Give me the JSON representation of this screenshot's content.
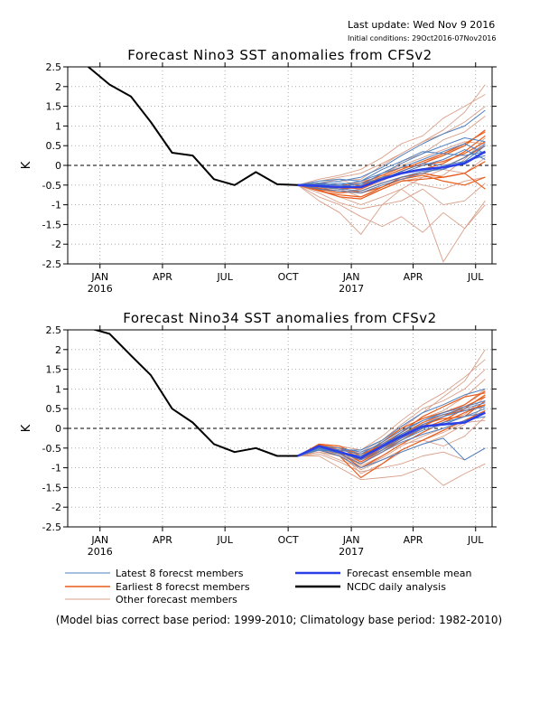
{
  "header": {
    "last_update": "Last update: Wed Nov  9 2016",
    "initial_conditions": "Initial conditions: 29Oct2016-07Nov2016"
  },
  "footer": {
    "note": "(Model bias correct base period: 1999-2010; Climatology base period: 1982-2010)"
  },
  "legend": {
    "placement": "bottom",
    "entries": [
      {
        "label": "Latest 8 forecst members",
        "color": "#4f7fbf",
        "role": "latest"
      },
      {
        "label": "Earliest 8 forecst members",
        "color": "#e85c1c",
        "role": "earliest"
      },
      {
        "label": "Other forecast members",
        "color": "#d9a08a",
        "role": "other"
      },
      {
        "label": "Forecast ensemble mean",
        "color": "#2b3fe6",
        "role": "mean"
      },
      {
        "label": "NCDC daily analysis",
        "color": "#000000",
        "role": "obs"
      }
    ]
  },
  "chart_data": [
    {
      "type": "line",
      "title": "Forecast Nino3 SST anomalies from CFSv2",
      "ylabel": "K",
      "ylim": [
        -2.5,
        2.5
      ],
      "xlim": [
        "2015-11-15",
        "2017-07-25"
      ],
      "grid": "dotted",
      "zero_line": true,
      "yticks": [
        2.5,
        2,
        1.5,
        1,
        0.5,
        0,
        -0.5,
        -1,
        -1.5,
        -2,
        -2.5
      ],
      "ytick_labels": [
        "2.5",
        "2",
        "1.5",
        "1",
        "0.5",
        "0",
        "-0.5",
        "-1",
        "-1.5",
        "-2",
        "-2.5"
      ],
      "xticks": [
        {
          "x": "2016-01-01",
          "label": "JAN",
          "year": "2016"
        },
        {
          "x": "2016-04-01",
          "label": "APR",
          "year": ""
        },
        {
          "x": "2016-07-01",
          "label": "JUL",
          "year": ""
        },
        {
          "x": "2016-10-01",
          "label": "OCT",
          "year": ""
        },
        {
          "x": "2017-01-01",
          "label": "JAN",
          "year": "2017"
        },
        {
          "x": "2017-04-01",
          "label": "APR",
          "year": ""
        },
        {
          "x": "2017-07-01",
          "label": "JUL",
          "year": ""
        }
      ],
      "observed": {
        "x": [
          "2015-12-15",
          "2016-01-15",
          "2016-02-15",
          "2016-03-15",
          "2016-04-15",
          "2016-05-15",
          "2016-06-15",
          "2016-07-15",
          "2016-08-15",
          "2016-09-15",
          "2016-10-15"
        ],
        "y": [
          2.5,
          2.05,
          1.75,
          1.1,
          0.32,
          0.25,
          -0.35,
          -0.5,
          -0.17,
          -0.48,
          -0.5
        ]
      },
      "forecast_x": [
        "2016-10-15",
        "2016-11-15",
        "2016-12-15",
        "2017-01-15",
        "2017-02-15",
        "2017-03-15",
        "2017-04-15",
        "2017-05-15",
        "2017-06-15",
        "2017-07-15"
      ],
      "ensemble_mean": [
        -0.5,
        -0.52,
        -0.55,
        -0.55,
        -0.35,
        -0.2,
        -0.1,
        -0.05,
        0.05,
        0.35
      ],
      "members": {
        "other": [
          [
            -0.5,
            -0.9,
            -1.2,
            -1.75,
            -1.0,
            -0.6,
            -1.0,
            -2.45,
            -1.6,
            -1.0
          ],
          [
            -0.5,
            -0.8,
            -1.0,
            -1.3,
            -1.55,
            -1.3,
            -1.7,
            -1.2,
            -1.6,
            -0.9
          ],
          [
            -0.5,
            -0.7,
            -0.95,
            -1.1,
            -1.0,
            -0.9,
            -0.6,
            -1.0,
            -0.9,
            -0.45
          ],
          [
            -0.5,
            -0.45,
            -0.4,
            -0.35,
            0.0,
            0.3,
            0.6,
            0.9,
            1.35,
            2.05
          ],
          [
            -0.5,
            -0.35,
            -0.25,
            -0.1,
            0.2,
            0.55,
            0.75,
            1.2,
            1.5,
            1.8
          ],
          [
            -0.5,
            -0.4,
            -0.3,
            -0.2,
            0.05,
            0.3,
            0.6,
            0.8,
            1.1,
            1.5
          ],
          [
            -0.5,
            -0.55,
            -0.5,
            -0.4,
            -0.3,
            0.1,
            0.3,
            0.65,
            0.85,
            1.25
          ],
          [
            -0.5,
            -0.6,
            -0.7,
            -0.6,
            -0.4,
            -0.15,
            0.05,
            0.3,
            0.5,
            0.9
          ],
          [
            -0.5,
            -0.5,
            -0.6,
            -0.8,
            -0.6,
            -0.4,
            -0.3,
            -0.25,
            0.15,
            0.7
          ],
          [
            -0.5,
            -0.65,
            -0.8,
            -1.0,
            -0.8,
            -0.6,
            -0.3,
            -0.1,
            -0.2,
            0.2
          ],
          [
            -0.5,
            -0.45,
            -0.35,
            -0.55,
            -0.2,
            0.0,
            0.2,
            0.4,
            0.6,
            0.55
          ],
          [
            -0.5,
            -0.6,
            -0.55,
            -0.7,
            -0.5,
            -0.35,
            -0.5,
            -0.6,
            -0.4,
            -0.3
          ]
        ],
        "earliest": [
          [
            -0.5,
            -0.55,
            -0.6,
            -0.5,
            -0.3,
            -0.1,
            0.1,
            0.3,
            0.55,
            0.85
          ],
          [
            -0.5,
            -0.6,
            -0.7,
            -0.65,
            -0.45,
            -0.3,
            -0.2,
            -0.05,
            0.2,
            0.5
          ],
          [
            -0.5,
            -0.5,
            -0.55,
            -0.6,
            -0.35,
            -0.15,
            0.05,
            0.25,
            0.5,
            0.9
          ],
          [
            -0.5,
            -0.62,
            -0.8,
            -0.85,
            -0.6,
            -0.4,
            -0.35,
            -0.3,
            -0.2,
            0.1
          ],
          [
            -0.5,
            -0.45,
            -0.5,
            -0.45,
            -0.25,
            -0.05,
            0.0,
            0.1,
            0.3,
            0.6
          ],
          [
            -0.5,
            -0.58,
            -0.65,
            -0.7,
            -0.55,
            -0.35,
            -0.25,
            -0.4,
            -0.5,
            -0.3
          ],
          [
            -0.5,
            -0.52,
            -0.6,
            -0.55,
            -0.3,
            -0.2,
            -0.1,
            0.05,
            0.35,
            0.75
          ],
          [
            -0.5,
            -0.65,
            -0.75,
            -0.8,
            -0.55,
            -0.3,
            -0.2,
            -0.3,
            -0.2,
            -0.6
          ]
        ],
        "latest": [
          [
            -0.5,
            -0.45,
            -0.4,
            -0.3,
            -0.05,
            0.25,
            0.55,
            0.8,
            1.0,
            1.4
          ],
          [
            -0.5,
            -0.5,
            -0.45,
            -0.5,
            -0.2,
            0.05,
            0.3,
            0.5,
            0.7,
            0.6
          ],
          [
            -0.5,
            -0.4,
            -0.35,
            -0.4,
            -0.1,
            0.1,
            0.35,
            0.3,
            0.25,
            0.35
          ],
          [
            -0.5,
            -0.55,
            -0.6,
            -0.65,
            -0.45,
            -0.3,
            -0.15,
            -0.1,
            0.1,
            0.25
          ],
          [
            -0.5,
            -0.5,
            -0.55,
            -0.45,
            -0.35,
            -0.15,
            0.05,
            0.0,
            0.1,
            0.5
          ],
          [
            -0.5,
            -0.48,
            -0.5,
            -0.55,
            -0.3,
            -0.2,
            0.0,
            0.15,
            0.4,
            0.15
          ],
          [
            -0.5,
            -0.6,
            -0.65,
            -0.7,
            -0.5,
            -0.35,
            -0.2,
            -0.05,
            0.2,
            0.55
          ],
          [
            -0.5,
            -0.45,
            -0.5,
            -0.4,
            -0.2,
            -0.05,
            0.15,
            0.35,
            0.55,
            0.3
          ]
        ]
      }
    },
    {
      "type": "line",
      "title": "Forecast Nino34 SST anomalies from CFSv2",
      "ylabel": "K",
      "ylim": [
        -2.5,
        2.5
      ],
      "xlim": [
        "2015-11-15",
        "2017-07-25"
      ],
      "grid": "dotted",
      "zero_line": true,
      "yticks": [
        2.5,
        2,
        1.5,
        1,
        0.5,
        0,
        -0.5,
        -1,
        -1.5,
        -2,
        -2.5
      ],
      "ytick_labels": [
        "2.5",
        "2",
        "1.5",
        "1",
        "0.5",
        "0",
        "-0.5",
        "-1",
        "-1.5",
        "-2",
        "-2.5"
      ],
      "xticks": [
        {
          "x": "2016-01-01",
          "label": "JAN",
          "year": "2016"
        },
        {
          "x": "2016-04-01",
          "label": "APR",
          "year": ""
        },
        {
          "x": "2016-07-01",
          "label": "JUL",
          "year": ""
        },
        {
          "x": "2016-10-01",
          "label": "OCT",
          "year": ""
        },
        {
          "x": "2017-01-01",
          "label": "JAN",
          "year": "2017"
        },
        {
          "x": "2017-04-01",
          "label": "APR",
          "year": ""
        },
        {
          "x": "2017-07-01",
          "label": "JUL",
          "year": ""
        }
      ],
      "observed": {
        "x": [
          "2015-12-15",
          "2016-01-15",
          "2016-02-15",
          "2016-03-15",
          "2016-04-15",
          "2016-05-15",
          "2016-06-15",
          "2016-07-15",
          "2016-08-15",
          "2016-09-15",
          "2016-10-15"
        ],
        "y": [
          2.55,
          2.4,
          1.85,
          1.35,
          0.5,
          0.15,
          -0.4,
          -0.6,
          -0.5,
          -0.7,
          -0.7
        ]
      },
      "forecast_x": [
        "2016-10-15",
        "2016-11-15",
        "2016-12-15",
        "2017-01-15",
        "2017-02-15",
        "2017-03-15",
        "2017-04-15",
        "2017-05-15",
        "2017-06-15",
        "2017-07-15"
      ],
      "ensemble_mean": [
        -0.7,
        -0.45,
        -0.6,
        -0.75,
        -0.45,
        -0.2,
        0.05,
        0.1,
        0.15,
        0.4
      ],
      "members": {
        "other": [
          [
            -0.7,
            -0.7,
            -1.0,
            -1.3,
            -1.25,
            -1.2,
            -1.0,
            -1.45,
            -1.15,
            -0.9
          ],
          [
            -0.7,
            -0.65,
            -0.85,
            -1.1,
            -1.0,
            -0.9,
            -0.7,
            -0.6,
            -0.8,
            -0.5
          ],
          [
            -0.7,
            -0.5,
            -0.5,
            -0.7,
            -0.35,
            0.0,
            0.4,
            0.8,
            1.2,
            2.0
          ],
          [
            -0.7,
            -0.4,
            -0.45,
            -0.55,
            -0.2,
            0.2,
            0.6,
            0.9,
            1.3,
            1.75
          ],
          [
            -0.7,
            -0.55,
            -0.6,
            -0.8,
            -0.3,
            0.1,
            0.5,
            0.7,
            1.0,
            1.5
          ],
          [
            -0.7,
            -0.6,
            -0.7,
            -0.9,
            -0.55,
            -0.2,
            0.15,
            0.3,
            0.6,
            1.0
          ],
          [
            -0.7,
            -0.45,
            -0.55,
            -0.95,
            -0.7,
            -0.4,
            -0.3,
            -0.45,
            -0.2,
            0.3
          ],
          [
            -0.7,
            -0.5,
            -0.6,
            -1.15,
            -0.9,
            -0.6,
            -0.4,
            -0.2,
            0.1,
            0.6
          ],
          [
            -0.7,
            -0.55,
            -0.65,
            -0.85,
            -0.5,
            -0.25,
            0.0,
            0.2,
            0.35,
            0.8
          ],
          [
            -0.7,
            -0.6,
            -0.8,
            -1.0,
            -0.75,
            -0.45,
            -0.2,
            0.0,
            0.2,
            0.45
          ],
          [
            -0.7,
            -0.5,
            -0.7,
            -1.05,
            -0.8,
            -0.55,
            -0.3,
            -0.1,
            0.15,
            0.2
          ],
          [
            -0.7,
            -0.45,
            -0.5,
            -0.6,
            -0.3,
            0.0,
            0.25,
            0.45,
            0.8,
            1.25
          ]
        ],
        "earliest": [
          [
            -0.7,
            -0.4,
            -0.45,
            -0.7,
            -0.4,
            -0.1,
            0.3,
            0.55,
            0.8,
            0.9
          ],
          [
            -0.7,
            -0.45,
            -0.55,
            -0.85,
            -0.55,
            -0.25,
            0.05,
            0.3,
            0.55,
            0.8
          ],
          [
            -0.7,
            -0.5,
            -0.6,
            -1.0,
            -0.7,
            -0.4,
            -0.1,
            0.15,
            0.4,
            0.6
          ],
          [
            -0.7,
            -0.42,
            -0.5,
            -0.75,
            -0.35,
            0.0,
            0.25,
            0.4,
            0.6,
            0.95
          ],
          [
            -0.7,
            -0.55,
            -0.7,
            -1.25,
            -0.9,
            -0.55,
            -0.3,
            -0.05,
            0.2,
            0.45
          ],
          [
            -0.7,
            -0.48,
            -0.58,
            -0.8,
            -0.5,
            -0.2,
            0.1,
            0.25,
            0.3,
            0.7
          ],
          [
            -0.7,
            -0.5,
            -0.65,
            -0.9,
            -0.6,
            -0.3,
            0.0,
            0.2,
            0.5,
            0.85
          ],
          [
            -0.7,
            -0.45,
            -0.5,
            -0.65,
            -0.45,
            -0.15,
            0.15,
            0.35,
            0.45,
            0.6
          ]
        ],
        "latest": [
          [
            -0.7,
            -0.5,
            -0.55,
            -0.55,
            -0.3,
            0.05,
            0.4,
            0.6,
            0.85,
            1.0
          ],
          [
            -0.7,
            -0.55,
            -0.6,
            -0.7,
            -0.45,
            -0.1,
            0.2,
            0.4,
            0.55,
            0.7
          ],
          [
            -0.7,
            -0.45,
            -0.5,
            -0.6,
            -0.4,
            -0.15,
            0.1,
            0.3,
            0.45,
            0.55
          ],
          [
            -0.7,
            -0.5,
            -0.65,
            -0.9,
            -0.6,
            -0.35,
            -0.15,
            0.0,
            0.2,
            0.3
          ],
          [
            -0.7,
            -0.55,
            -0.7,
            -1.0,
            -0.8,
            -0.6,
            -0.4,
            -0.25,
            -0.8,
            -0.5
          ],
          [
            -0.7,
            -0.5,
            -0.6,
            -0.75,
            -0.5,
            -0.25,
            0.0,
            0.15,
            0.3,
            0.5
          ],
          [
            -0.7,
            -0.48,
            -0.55,
            -0.65,
            -0.35,
            -0.05,
            0.2,
            0.35,
            0.5,
            0.65
          ],
          [
            -0.7,
            -0.52,
            -0.62,
            -0.8,
            -0.55,
            -0.3,
            -0.05,
            0.1,
            0.3,
            0.4
          ]
        ]
      }
    }
  ]
}
